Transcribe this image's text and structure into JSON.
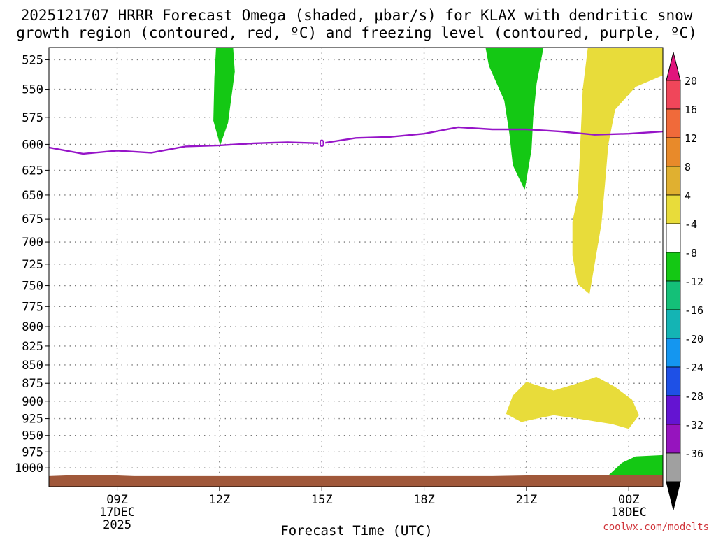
{
  "chart_data": {
    "type": "contour",
    "title_line1": "2025121707 HRRR Forecast Omega (shaded, μbar/s) for KLAX with dendritic snow",
    "title_line2": "growth region (contoured, red, ºC) and freezing level (contoured, purple, ºC)",
    "xlabel": "Forecast Time (UTC)",
    "credit": "coolwx.com/modelts",
    "credit_color": "#d0343a",
    "x_range_hours": [
      7,
      25
    ],
    "y_range_hpa": [
      515,
      1030
    ],
    "x_ticks": [
      {
        "hour": 9,
        "label": "09Z",
        "sub1": "17DEC",
        "sub2": "2025"
      },
      {
        "hour": 12,
        "label": "12Z",
        "sub1": "",
        "sub2": ""
      },
      {
        "hour": 15,
        "label": "15Z",
        "sub1": "",
        "sub2": ""
      },
      {
        "hour": 18,
        "label": "18Z",
        "sub1": "",
        "sub2": ""
      },
      {
        "hour": 21,
        "label": "21Z",
        "sub1": "",
        "sub2": ""
      },
      {
        "hour": 24,
        "label": "00Z",
        "sub1": "18DEC",
        "sub2": ""
      }
    ],
    "y_ticks": [
      525,
      550,
      575,
      600,
      625,
      650,
      675,
      700,
      725,
      750,
      775,
      800,
      825,
      850,
      875,
      900,
      925,
      950,
      975,
      1000
    ],
    "colorbar": {
      "labels": [
        "20",
        "16",
        "12",
        "8",
        "4",
        "-4",
        "-8",
        "-12",
        "-16",
        "-20",
        "-24",
        "-28",
        "-32",
        "-36"
      ],
      "colors": [
        "#f0465a",
        "#f06a3a",
        "#e88a2a",
        "#e0b030",
        "#e8dc3a",
        "#ffffff",
        "#14c814",
        "#14c078",
        "#14b4b4",
        "#1496f0",
        "#1e50e6",
        "#6414d2",
        "#9614be",
        "#a0a0a0"
      ],
      "top_arrow_color": "#e0147c",
      "bottom_arrow_color": "#000000"
    },
    "freezing_level": {
      "label": "0",
      "color": "#9614c8",
      "points": [
        [
          7.0,
          603
        ],
        [
          8.0,
          609
        ],
        [
          9.0,
          606
        ],
        [
          10.0,
          608
        ],
        [
          11.0,
          602
        ],
        [
          12.0,
          601
        ],
        [
          13.0,
          599
        ],
        [
          14.0,
          598
        ],
        [
          15.0,
          599
        ],
        [
          16.0,
          594
        ],
        [
          17.0,
          593
        ],
        [
          18.0,
          590
        ],
        [
          19.0,
          584
        ],
        [
          20.0,
          586
        ],
        [
          21.0,
          586
        ],
        [
          22.0,
          588
        ],
        [
          23.0,
          591
        ],
        [
          24.0,
          590
        ],
        [
          25.0,
          588
        ]
      ]
    },
    "shaded_regions": [
      {
        "category": "-8 to -4",
        "color": "#14c814",
        "points": [
          [
            11.9,
            515
          ],
          [
            12.4,
            515
          ],
          [
            12.45,
            535
          ],
          [
            12.25,
            580
          ],
          [
            12.02,
            601
          ],
          [
            11.82,
            578
          ],
          [
            11.85,
            540
          ]
        ]
      },
      {
        "category": "-8 to -4",
        "color": "#14c814",
        "points": [
          [
            19.8,
            515
          ],
          [
            21.5,
            515
          ],
          [
            21.3,
            545
          ],
          [
            21.2,
            575
          ],
          [
            21.15,
            605
          ],
          [
            20.95,
            645
          ],
          [
            20.6,
            620
          ],
          [
            20.5,
            590
          ],
          [
            20.35,
            560
          ],
          [
            19.9,
            530
          ]
        ]
      },
      {
        "category": "4 to 8",
        "color": "#e8dc3a",
        "points": [
          [
            22.8,
            515
          ],
          [
            25.0,
            515
          ],
          [
            25.0,
            538
          ],
          [
            24.2,
            548
          ],
          [
            23.6,
            568
          ],
          [
            23.4,
            600
          ],
          [
            23.3,
            640
          ],
          [
            23.2,
            680
          ],
          [
            23.0,
            725
          ],
          [
            22.85,
            760
          ],
          [
            22.5,
            748
          ],
          [
            22.35,
            715
          ],
          [
            22.35,
            678
          ],
          [
            22.5,
            652
          ],
          [
            22.55,
            620
          ],
          [
            22.6,
            585
          ],
          [
            22.65,
            550
          ]
        ]
      },
      {
        "category": "4 to 8",
        "color": "#e8dc3a",
        "points": [
          [
            20.4,
            918
          ],
          [
            20.6,
            892
          ],
          [
            21.0,
            873
          ],
          [
            21.8,
            885
          ],
          [
            22.5,
            875
          ],
          [
            23.05,
            866
          ],
          [
            23.6,
            880
          ],
          [
            24.1,
            898
          ],
          [
            24.3,
            920
          ],
          [
            24.0,
            940
          ],
          [
            23.5,
            933
          ],
          [
            22.5,
            925
          ],
          [
            21.8,
            920
          ],
          [
            21.3,
            925
          ],
          [
            20.85,
            930
          ]
        ]
      },
      {
        "category": "-8 to -4",
        "color": "#14c814",
        "points": [
          [
            23.4,
            1012
          ],
          [
            23.8,
            992
          ],
          [
            24.2,
            982
          ],
          [
            25.0,
            980
          ],
          [
            25.0,
            1012
          ]
        ]
      }
    ],
    "surface_pressure": {
      "color": "#a0583a",
      "points": [
        [
          7.0,
          1013
        ],
        [
          7.5,
          1012
        ],
        [
          9.0,
          1012
        ],
        [
          9.5,
          1013
        ],
        [
          20.0,
          1013
        ],
        [
          21.0,
          1012
        ],
        [
          23.5,
          1012
        ],
        [
          25.0,
          1012
        ]
      ]
    }
  }
}
